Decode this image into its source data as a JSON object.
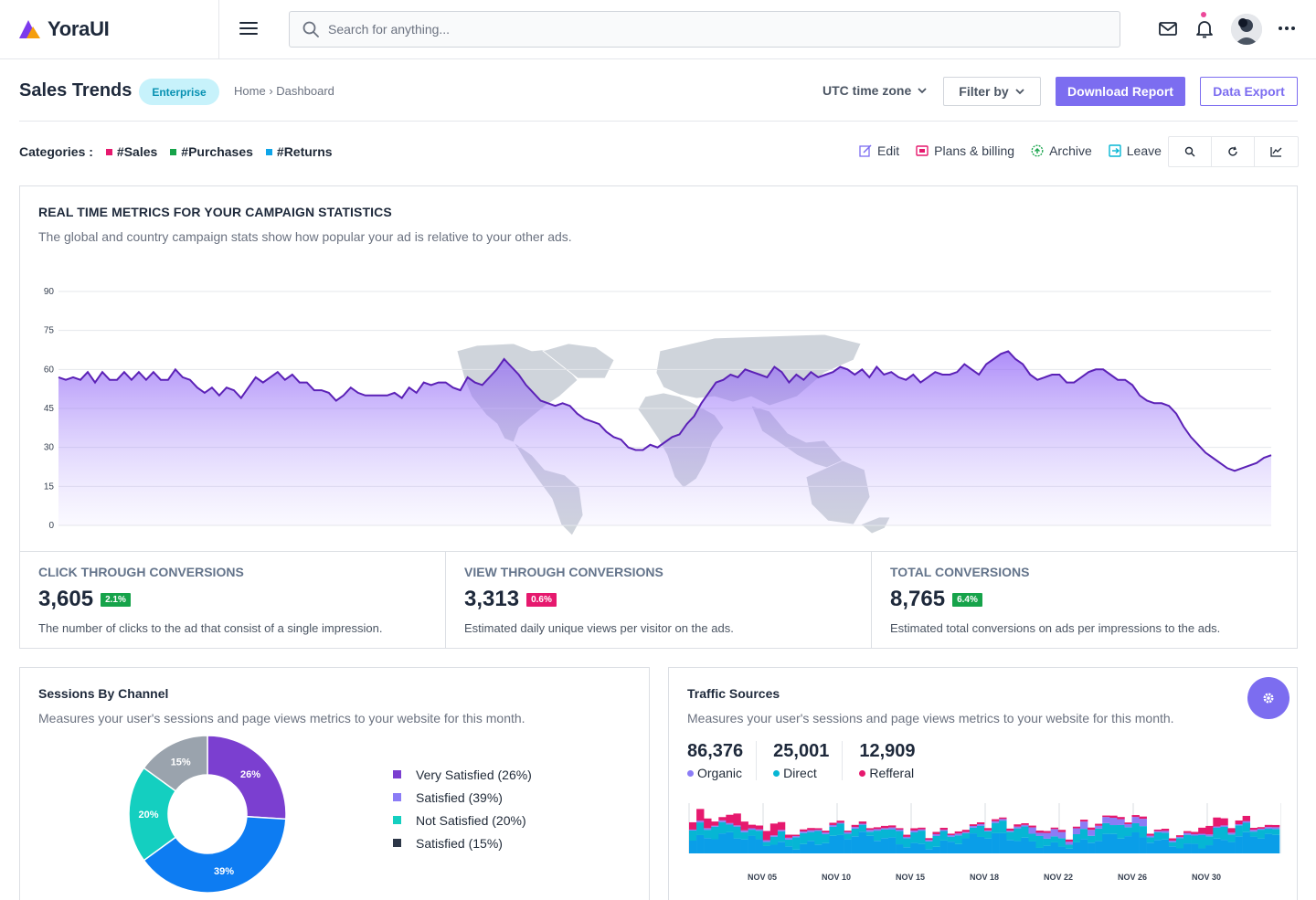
{
  "app": {
    "name": "YoraUI"
  },
  "search": {
    "placeholder": "Search for anything..."
  },
  "header": {
    "title": "Sales Trends",
    "badge": "Enterprise",
    "breadcrumb_home": "Home",
    "breadcrumb_sep": "›",
    "breadcrumb_current": "Dashboard",
    "timezone": "UTC time zone",
    "filter_label": "Filter by",
    "download_label": "Download Report",
    "export_label": "Data Export"
  },
  "categories": {
    "label": "Categories :",
    "items": [
      {
        "label": "#Sales",
        "color": "#e6196e"
      },
      {
        "label": "#Purchases",
        "color": "#16a34a"
      },
      {
        "label": "#Returns",
        "color": "#0ea5e9"
      }
    ]
  },
  "actions": [
    {
      "label": "Edit",
      "icon": "edit-icon",
      "color": "#7c6df0"
    },
    {
      "label": "Plans & billing",
      "icon": "billing-icon",
      "color": "#e6196e"
    },
    {
      "label": "Archive",
      "icon": "archive-icon",
      "color": "#16a34a"
    },
    {
      "label": "Leave",
      "icon": "leave-icon",
      "color": "#06b6d4"
    }
  ],
  "main_card": {
    "title": "REAL TIME METRICS FOR YOUR CAMPAIGN STATISTICS",
    "subtitle": "The global and country campaign stats show how popular your ad is relative to your other ads."
  },
  "chart_data": {
    "type": "area",
    "title": "",
    "xlabel": "",
    "ylabel": "",
    "ylim": [
      0,
      90
    ],
    "yticks": [
      "0",
      "15",
      "30",
      "45",
      "60",
      "75",
      "90"
    ],
    "grid": true,
    "values": [
      57,
      56,
      57,
      56,
      59,
      55,
      59,
      56,
      56,
      59,
      56,
      59,
      56,
      59,
      56,
      56,
      60,
      57,
      56,
      53,
      51,
      53,
      50,
      53,
      52,
      49,
      53,
      57,
      55,
      57,
      59,
      56,
      58,
      55,
      55,
      52,
      52,
      51,
      48,
      50,
      53,
      51,
      50,
      50,
      50,
      50,
      51,
      49,
      53,
      51,
      55,
      54,
      55,
      55,
      53,
      52,
      57,
      55,
      54,
      57,
      60,
      64,
      61,
      58,
      54,
      51,
      48,
      47,
      46,
      47,
      46,
      43,
      41,
      40,
      39,
      36,
      34,
      33,
      30,
      29,
      29,
      31,
      30,
      32,
      34,
      35,
      39,
      42,
      47,
      51,
      55,
      56,
      58,
      57,
      60,
      59,
      58,
      57,
      61,
      59,
      55,
      58,
      56,
      59,
      57,
      58,
      59,
      61,
      60,
      58,
      60,
      57,
      61,
      58,
      59,
      57,
      56,
      58,
      55,
      57,
      59,
      58,
      58,
      59,
      62,
      60,
      58,
      62,
      64,
      66,
      67,
      64,
      62,
      58,
      56,
      57,
      58,
      58,
      55,
      55,
      57,
      59,
      60,
      60,
      58,
      56,
      56,
      54,
      50,
      48,
      47,
      47,
      46,
      43,
      38,
      34,
      31,
      28,
      26,
      24,
      22,
      21,
      22,
      23,
      24,
      26,
      27
    ]
  },
  "stats": [
    {
      "label": "CLICK THROUGH CONVERSIONS",
      "value": "3,605",
      "badge": "2.1%",
      "badge_color": "#16a34a",
      "desc": "The number of clicks to the ad that consist of a single impression."
    },
    {
      "label": "VIEW THROUGH CONVERSIONS",
      "value": "3,313",
      "badge": "0.6%",
      "badge_color": "#e6196e",
      "desc": "Estimated daily unique views per visitor on the ads."
    },
    {
      "label": "TOTAL CONVERSIONS",
      "value": "8,765",
      "badge": "6.4%",
      "badge_color": "#16a34a",
      "desc": "Estimated total conversions on ads per impressions to the ads."
    }
  ],
  "sessions": {
    "title": "Sessions By Channel",
    "subtitle": "Measures your user's sessions and page views metrics to your website for this month.",
    "slices": [
      {
        "label": "26%",
        "value": 26,
        "color": "#7b3fd0"
      },
      {
        "label": "39%",
        "value": 39,
        "color": "#0d7cf2"
      },
      {
        "label": "20%",
        "value": 20,
        "color": "#14cfc0"
      },
      {
        "label": "15%",
        "value": 15,
        "color": "#9aa3ad"
      }
    ],
    "legend": [
      {
        "label": "Very Satisfied (26%)",
        "color": "#7b3fd0"
      },
      {
        "label": "Satisfied (39%)",
        "color": "#8b7cf6"
      },
      {
        "label": "Not Satisfied (20%)",
        "color": "#14cfc0"
      },
      {
        "label": "Satisfied (15%)",
        "color": "#2d3748"
      }
    ]
  },
  "traffic": {
    "title": "Traffic Sources",
    "subtitle": "Measures your user's sessions and page views metrics to your website for this month.",
    "stats": [
      {
        "value": "86,376",
        "label": "Organic",
        "color": "#8b7cf6"
      },
      {
        "value": "25,001",
        "label": "Direct",
        "color": "#06b6d4"
      },
      {
        "value": "12,909",
        "label": "Refferal",
        "color": "#e6196e"
      }
    ],
    "dates": [
      "NOV 05",
      "NOV 10",
      "NOV 15",
      "NOV 18",
      "NOV 22",
      "NOV 26",
      "NOV 30"
    ]
  }
}
